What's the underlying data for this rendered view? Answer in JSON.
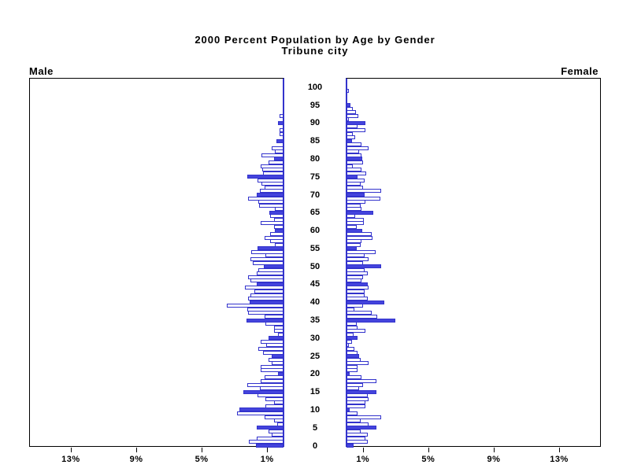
{
  "header": {
    "title": "2000 Percent Population by Age by Gender",
    "subtitle": "Tribune city"
  },
  "panel_labels": {
    "male": "Male",
    "female": "Female"
  },
  "colors": {
    "bar_fill_blue": "#4444DD",
    "bar_outline_blue": "#3333CC",
    "bar_fill_white": "#FFFFFF",
    "axis_color": "#000000",
    "background": "#FFFFFF"
  },
  "chart_data": {
    "type": "bar",
    "variant": "population-pyramid",
    "title": "2000 Percent Population by Age by Gender",
    "subtitle": "Tribune city",
    "unit": "percent of population",
    "orientation": "horizontal, ages 0 (bottom) to 100 (top); Male bars extend left, Female bars extend right",
    "highlight_rule": "ages divisible by 5 drawn as solid blue bars; all other ages white bars with blue outline",
    "age_min": 0,
    "age_max": 100,
    "age_tick_step": 5,
    "age_tick_labels": [
      "0",
      "5",
      "10",
      "15",
      "20",
      "25",
      "30",
      "35",
      "40",
      "45",
      "50",
      "55",
      "60",
      "65",
      "70",
      "75",
      "80",
      "85",
      "90",
      "95",
      "100"
    ],
    "percent_tick_values": [
      1,
      5,
      9,
      13
    ],
    "percent_tick_labels": [
      "1%",
      "5%",
      "9%",
      "13%"
    ],
    "xlim_percent": [
      0,
      15.5
    ],
    "grid": false,
    "legend": false,
    "series": [
      {
        "name": "Male",
        "side": "left",
        "values_by_age_0_to_100": [
          1.7,
          2.1,
          1.65,
          0.7,
          0.9,
          1.65,
          0.4,
          0.6,
          1.15,
          2.85,
          2.7,
          1.1,
          0.6,
          1.1,
          1.6,
          2.45,
          1.45,
          2.2,
          1.4,
          1.15,
          0.35,
          1.4,
          1.4,
          0.7,
          0.9,
          0.7,
          1.25,
          1.55,
          1.05,
          1.4,
          0.9,
          0.35,
          0.6,
          0.6,
          1.1,
          2.25,
          1.15,
          2.15,
          2.2,
          3.45,
          2.05,
          2.15,
          2.0,
          1.8,
          2.35,
          1.65,
          2.0,
          2.15,
          1.65,
          1.55,
          1.2,
          1.9,
          2.0,
          1.1,
          1.95,
          1.6,
          0.55,
          0.8,
          1.15,
          0.8,
          0.55,
          0.6,
          1.4,
          0.6,
          0.8,
          0.85,
          0.55,
          1.5,
          1.55,
          2.15,
          1.65,
          1.45,
          1.15,
          1.35,
          1.6,
          2.2,
          1.25,
          1.3,
          1.4,
          0.9,
          0.6,
          1.35,
          0.55,
          0.7,
          0.0,
          0.45,
          0.0,
          0.25,
          0.25,
          0.0,
          0.35,
          0.0,
          0.25,
          0.0,
          0.0,
          0.0,
          0.0,
          0.0,
          0.0,
          0.0,
          0.0
        ]
      },
      {
        "name": "Female",
        "side": "right",
        "values_by_age_0_to_100": [
          0.45,
          1.28,
          1.17,
          1.28,
          0.85,
          1.85,
          1.33,
          0.85,
          2.13,
          0.69,
          0.2,
          1.17,
          1.17,
          1.33,
          1.28,
          1.85,
          0.76,
          1.0,
          1.85,
          0.92,
          0.2,
          0.69,
          0.69,
          1.33,
          0.85,
          0.76,
          0.69,
          0.48,
          0.16,
          0.32,
          0.69,
          0.43,
          1.17,
          0.69,
          0.64,
          3.0,
          1.88,
          1.56,
          0.48,
          1.0,
          2.3,
          1.28,
          1.12,
          1.12,
          1.33,
          1.28,
          0.9,
          1.0,
          1.28,
          1.12,
          2.13,
          1.0,
          1.33,
          1.12,
          1.77,
          0.64,
          0.85,
          0.92,
          1.6,
          1.56,
          0.96,
          0.64,
          1.08,
          1.08,
          0.53,
          1.65,
          0.92,
          0.85,
          1.17,
          2.06,
          1.12,
          2.13,
          1.0,
          0.88,
          1.12,
          0.69,
          1.2,
          0.9,
          0.37,
          1.0,
          0.96,
          0.9,
          0.76,
          1.35,
          0.92,
          0.32,
          0.53,
          0.4,
          1.17,
          0.65,
          1.17,
          0.16,
          0.7,
          0.6,
          0.37,
          0.25,
          0.0,
          0.0,
          0.0,
          0.15,
          0.0
        ]
      }
    ]
  }
}
